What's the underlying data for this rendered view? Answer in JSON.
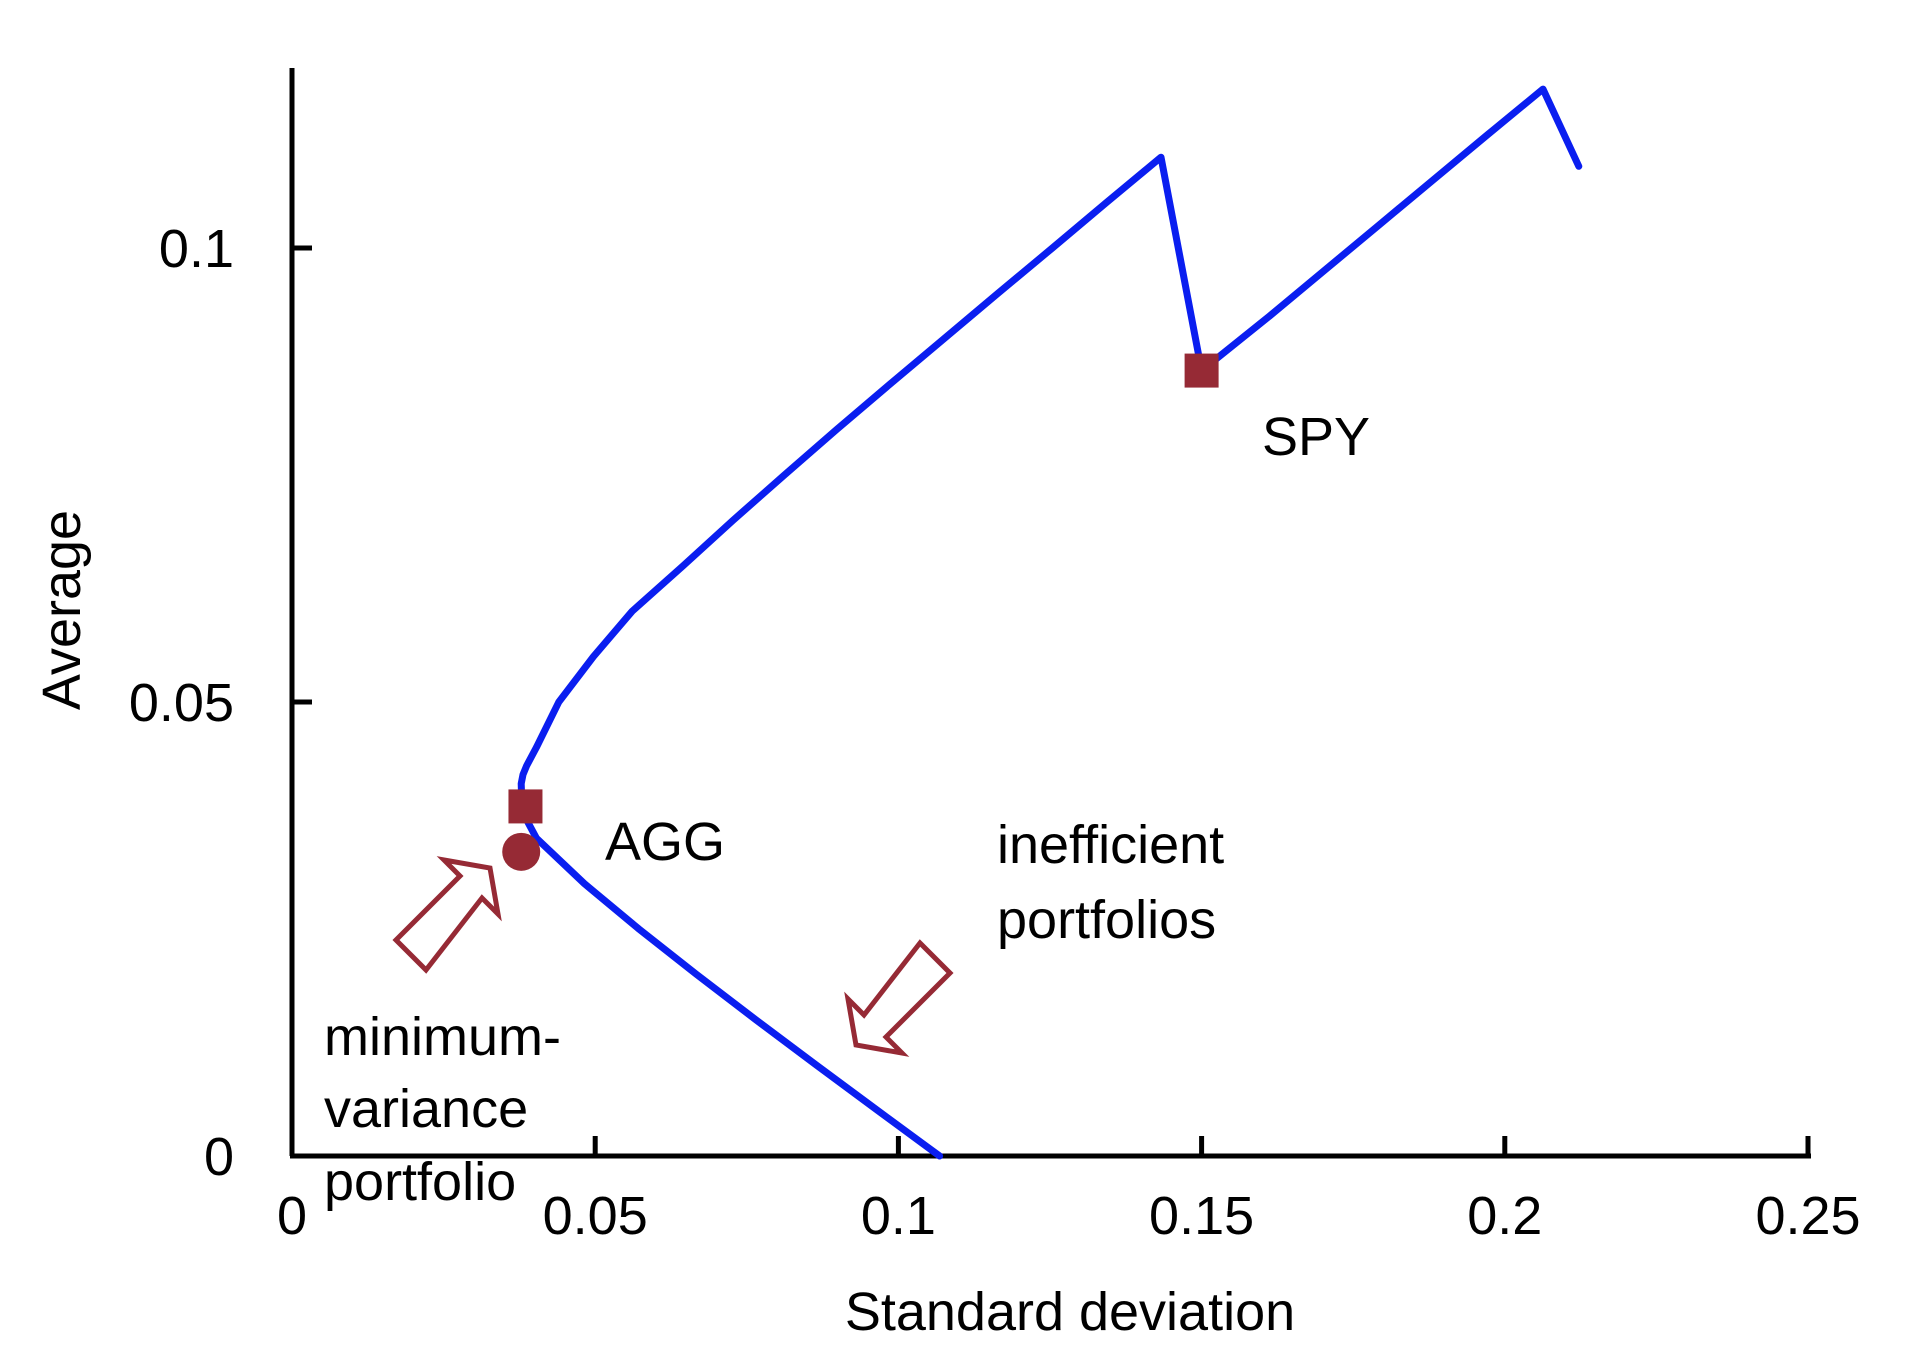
{
  "chart_data": {
    "type": "line",
    "title": "",
    "xlabel": "Standard deviation",
    "ylabel": "Average",
    "xlim": [
      0,
      0.25
    ],
    "ylim": [
      0,
      0.12
    ],
    "x_ticks": [
      0,
      0.05,
      0.1,
      0.15,
      0.2,
      0.25
    ],
    "x_tick_labels": [
      "0",
      "0.05",
      "0.1",
      "0.15",
      "0.2",
      "0.25"
    ],
    "y_ticks": [
      0,
      0.05,
      0.1
    ],
    "y_tick_labels": [
      "0",
      "0.05",
      "0.1"
    ],
    "grid": false,
    "series": [
      {
        "color": "#0a1ef0",
        "x": [
          0.1068,
          0.0966,
          0.0865,
          0.0765,
          0.0667,
          0.0572,
          0.0482,
          0.0403,
          0.0387,
          0.0379,
          0.0378,
          0.0381,
          0.0387,
          0.0403,
          0.044,
          0.0497,
          0.0561,
          0.0645,
          0.0727,
          0.0812,
          0.0898,
          0.0986,
          0.1075,
          0.1164,
          0.1254,
          0.1343,
          0.1433,
          0.15,
          0.1612,
          0.1702,
          0.1792,
          0.1882,
          0.1972,
          0.2063,
          0.2122
        ],
        "y": [
          0.0,
          0.005,
          0.01,
          0.015,
          0.02,
          0.025,
          0.03,
          0.035,
          0.037,
          0.039,
          0.041,
          0.042,
          0.043,
          0.045,
          0.05,
          0.055,
          0.06,
          0.065,
          0.07,
          0.075,
          0.08,
          0.085,
          0.09,
          0.095,
          0.1,
          0.105,
          0.11,
          0.0865,
          0.0925,
          0.0975,
          0.1025,
          0.1075,
          0.1125,
          0.1175,
          0.109
        ]
      }
    ],
    "points": [
      {
        "label": "SPY",
        "x": 0.15,
        "y": 0.0865,
        "marker": "square",
        "color": "#962a35"
      },
      {
        "label": "AGG",
        "x": 0.0385,
        "y": 0.0385,
        "marker": "square",
        "color": "#962a35"
      },
      {
        "label": "",
        "x": 0.0378,
        "y": 0.0335,
        "marker": "circle",
        "color": "#962a35"
      }
    ],
    "annotations": [
      {
        "id": "spy",
        "text": "SPY"
      },
      {
        "id": "agg",
        "text": "AGG"
      },
      {
        "id": "minvar",
        "lines": [
          "minimum-",
          "variance",
          "portfolio"
        ]
      },
      {
        "id": "inefficient",
        "lines": [
          "inefficient",
          "portfolios"
        ]
      }
    ],
    "arrow_color": "#962a35"
  }
}
